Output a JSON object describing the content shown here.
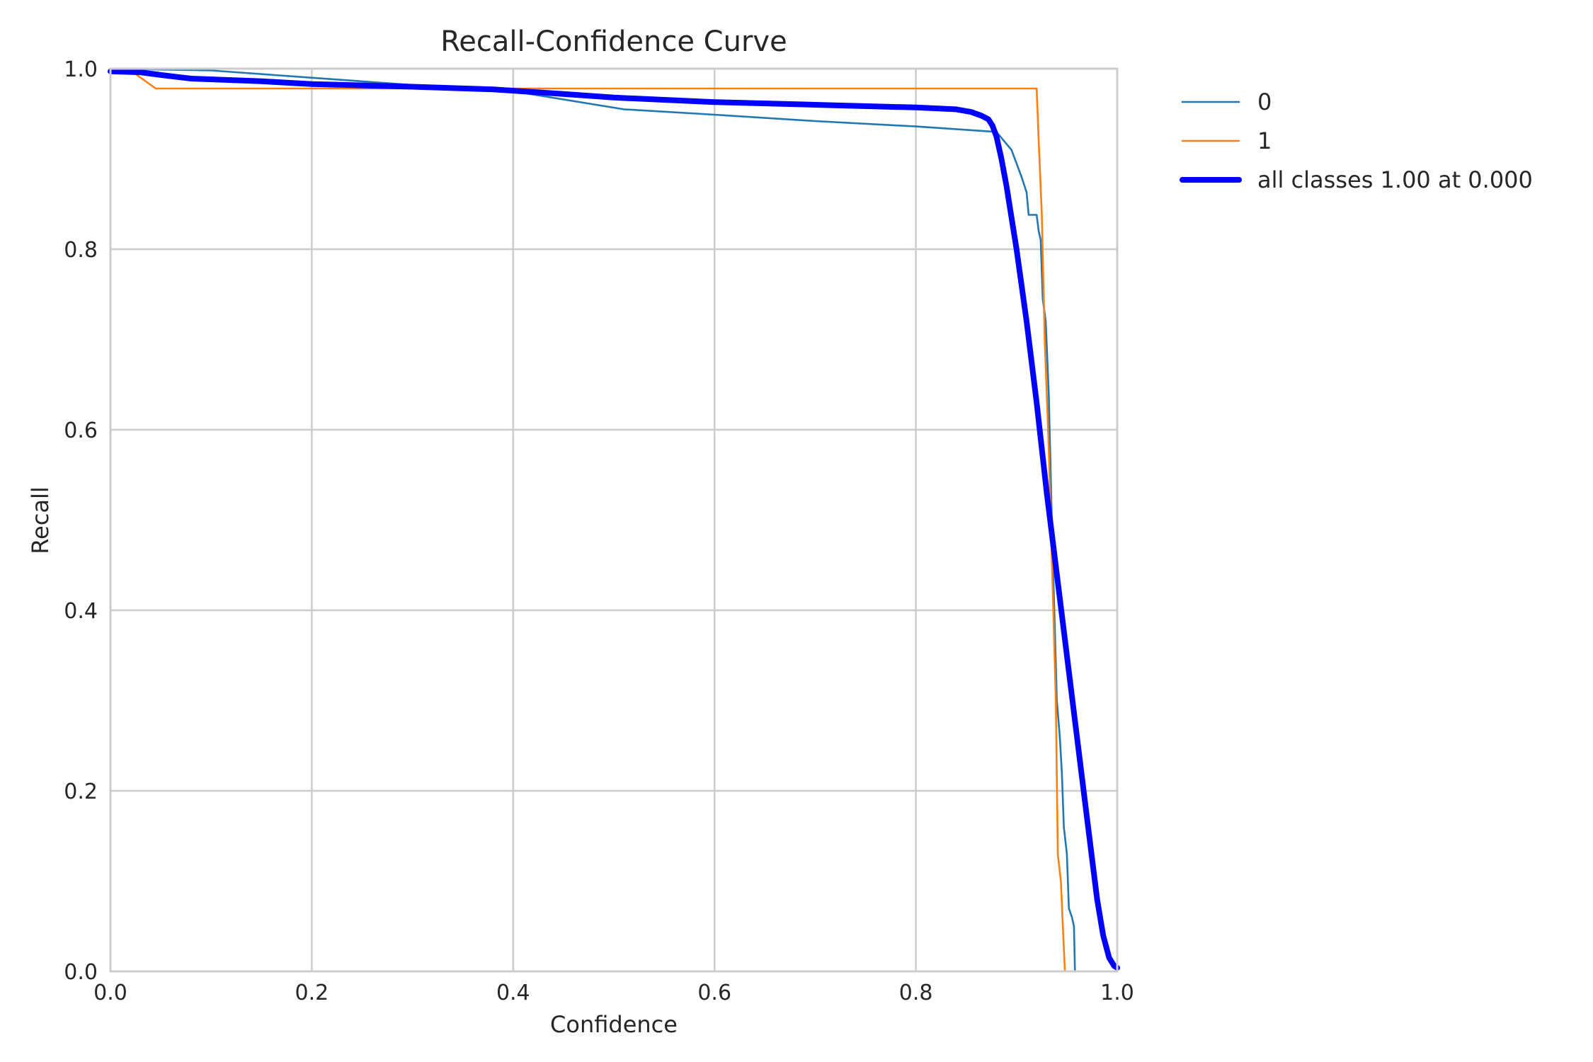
{
  "chart_data": {
    "type": "line",
    "title": "Recall-Confidence Curve",
    "xlabel": "Confidence",
    "ylabel": "Recall",
    "xlim": [
      0,
      1
    ],
    "ylim": [
      0,
      1
    ],
    "xticks": [
      "0.0",
      "0.2",
      "0.4",
      "0.6",
      "0.8",
      "1.0"
    ],
    "yticks": [
      "0.0",
      "0.2",
      "0.4",
      "0.6",
      "0.8",
      "1.0"
    ],
    "grid": true,
    "legend_position": "outside-top-right",
    "series": [
      {
        "name": "0",
        "color": "#1f77b4",
        "points": [
          [
            0.0,
            1.0
          ],
          [
            0.1,
            0.998
          ],
          [
            0.2,
            0.99
          ],
          [
            0.3,
            0.982
          ],
          [
            0.4,
            0.975
          ],
          [
            0.51,
            0.955
          ],
          [
            0.6,
            0.949
          ],
          [
            0.7,
            0.942
          ],
          [
            0.8,
            0.936
          ],
          [
            0.88,
            0.93
          ],
          [
            0.895,
            0.91
          ],
          [
            0.9,
            0.895
          ],
          [
            0.905,
            0.88
          ],
          [
            0.91,
            0.863
          ],
          [
            0.912,
            0.838
          ],
          [
            0.92,
            0.838
          ],
          [
            0.922,
            0.82
          ],
          [
            0.924,
            0.81
          ],
          [
            0.926,
            0.745
          ],
          [
            0.929,
            0.72
          ],
          [
            0.932,
            0.64
          ],
          [
            0.935,
            0.5
          ],
          [
            0.937,
            0.42
          ],
          [
            0.94,
            0.3
          ],
          [
            0.943,
            0.26
          ],
          [
            0.945,
            0.22
          ],
          [
            0.947,
            0.16
          ],
          [
            0.95,
            0.13
          ],
          [
            0.952,
            0.07
          ],
          [
            0.955,
            0.06
          ],
          [
            0.957,
            0.05
          ],
          [
            0.958,
            0.0
          ],
          [
            1.0,
            0.0
          ]
        ]
      },
      {
        "name": "1",
        "color": "#ff7f0e",
        "points": [
          [
            0.0,
            1.0
          ],
          [
            0.02,
            0.998
          ],
          [
            0.045,
            0.978
          ],
          [
            0.3,
            0.978
          ],
          [
            0.5,
            0.978
          ],
          [
            0.7,
            0.978
          ],
          [
            0.85,
            0.978
          ],
          [
            0.92,
            0.978
          ],
          [
            0.922,
            0.92
          ],
          [
            0.925,
            0.84
          ],
          [
            0.928,
            0.7
          ],
          [
            0.932,
            0.58
          ],
          [
            0.936,
            0.42
          ],
          [
            0.939,
            0.3
          ],
          [
            0.941,
            0.13
          ],
          [
            0.944,
            0.1
          ],
          [
            0.946,
            0.05
          ],
          [
            0.948,
            0.0
          ],
          [
            1.0,
            0.0
          ]
        ]
      },
      {
        "name": "all classes 1.00 at 0.000",
        "color": "#0000ff",
        "points": [
          [
            0.0,
            0.997
          ],
          [
            0.03,
            0.996
          ],
          [
            0.05,
            0.993
          ],
          [
            0.08,
            0.989
          ],
          [
            0.15,
            0.986
          ],
          [
            0.2,
            0.983
          ],
          [
            0.3,
            0.98
          ],
          [
            0.38,
            0.977
          ],
          [
            0.45,
            0.972
          ],
          [
            0.5,
            0.968
          ],
          [
            0.6,
            0.963
          ],
          [
            0.7,
            0.96
          ],
          [
            0.8,
            0.957
          ],
          [
            0.84,
            0.955
          ],
          [
            0.855,
            0.952
          ],
          [
            0.865,
            0.948
          ],
          [
            0.872,
            0.944
          ],
          [
            0.876,
            0.937
          ],
          [
            0.88,
            0.925
          ],
          [
            0.885,
            0.9
          ],
          [
            0.89,
            0.87
          ],
          [
            0.9,
            0.8
          ],
          [
            0.91,
            0.72
          ],
          [
            0.92,
            0.63
          ],
          [
            0.93,
            0.53
          ],
          [
            0.94,
            0.44
          ],
          [
            0.95,
            0.35
          ],
          [
            0.96,
            0.26
          ],
          [
            0.97,
            0.17
          ],
          [
            0.98,
            0.08
          ],
          [
            0.986,
            0.04
          ],
          [
            0.992,
            0.015
          ],
          [
            0.997,
            0.006
          ],
          [
            1.0,
            0.004
          ]
        ]
      }
    ]
  }
}
